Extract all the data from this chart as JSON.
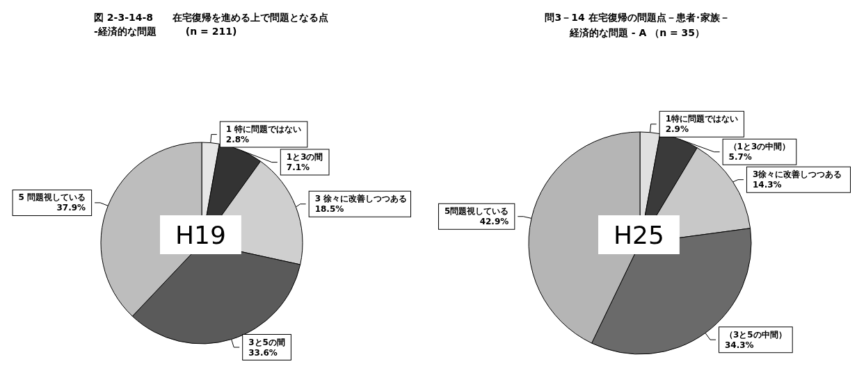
{
  "chart_data": [
    {
      "type": "pie",
      "title": "図 2-3-14-8　　在宅復帰を進める上で問題となる点\n-経済的な問題　　　(n = 211)",
      "categories": [
        "1 特に問題ではない",
        "1と3の間",
        "3 徐々に改善しつつある",
        "3と5の間",
        "5 問題視している"
      ],
      "values": [
        2.8,
        7.1,
        18.5,
        33.6,
        37.9
      ],
      "value_labels": [
        "2.8%",
        "7.1%",
        "18.5%",
        "33.6%",
        "37.9%"
      ],
      "colors": [
        "#e6e6e6",
        "#333333",
        "#cfcfcf",
        "#5a5a5a",
        "#bdbdbd"
      ],
      "annotations": [
        "H19"
      ]
    },
    {
      "type": "pie",
      "title": "問3－14 在宅復帰の問題点－患者･家族－",
      "subtitle": "経済的な問題 - A （n = 35）",
      "categories": [
        "1特に問題ではない",
        "（1と3の中間）",
        "3徐々に改善しつつある",
        "（3と5の中間）",
        "5問題視している"
      ],
      "values": [
        2.9,
        5.7,
        14.3,
        34.3,
        42.9
      ],
      "value_labels": [
        "2.9%",
        "5.7%",
        "14.3%",
        "34.3%",
        "42.9%"
      ],
      "colors": [
        "#e0e0e0",
        "#3a3a3a",
        "#c8c8c8",
        "#6a6a6a",
        "#b5b5b5"
      ],
      "annotations": [
        "H25"
      ]
    }
  ]
}
